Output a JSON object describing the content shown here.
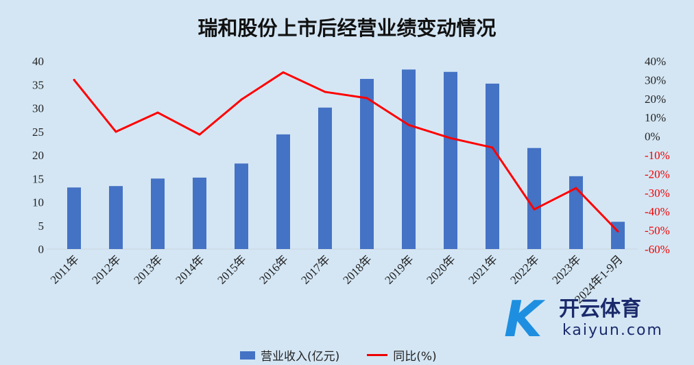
{
  "chart_data": {
    "type": "bar+line",
    "title": "瑞和股份上市后经营业绩变动情况",
    "categories": [
      "2011年",
      "2012年",
      "2013年",
      "2014年",
      "2015年",
      "2016年",
      "2017年",
      "2018年",
      "2019年",
      "2020年",
      "2021年",
      "2022年",
      "2023年",
      "2024年1-9月"
    ],
    "series": [
      {
        "name": "营业收入(亿元)",
        "type": "bar",
        "axis": "left",
        "color": "#4472c4",
        "values": [
          13.1,
          13.4,
          15.0,
          15.2,
          18.2,
          24.4,
          30.1,
          36.2,
          38.2,
          37.7,
          35.2,
          21.5,
          15.5,
          5.8
        ]
      },
      {
        "name": "同比(%)",
        "type": "line",
        "axis": "right",
        "color": "#ff0000",
        "values": [
          30.0,
          2.4,
          12.6,
          0.9,
          19.5,
          34.0,
          23.6,
          20.3,
          6.0,
          -1.0,
          -6.0,
          -38.9,
          -27.6,
          -50.6
        ]
      }
    ],
    "ylim_left": [
      0,
      40
    ],
    "yticks_left": [
      "0",
      "5",
      "10",
      "15",
      "20",
      "25",
      "30",
      "35",
      "40"
    ],
    "ylim_right": [
      -60,
      40
    ],
    "yticks_right": [
      "-60%",
      "-50%",
      "-40%",
      "-30%",
      "-20%",
      "-10%",
      "0%",
      "10%",
      "20%",
      "30%",
      "40%"
    ],
    "grid": false,
    "legend": "bottom"
  },
  "watermark": {
    "cn": "开云体育",
    "en": "kaiyun.com"
  }
}
